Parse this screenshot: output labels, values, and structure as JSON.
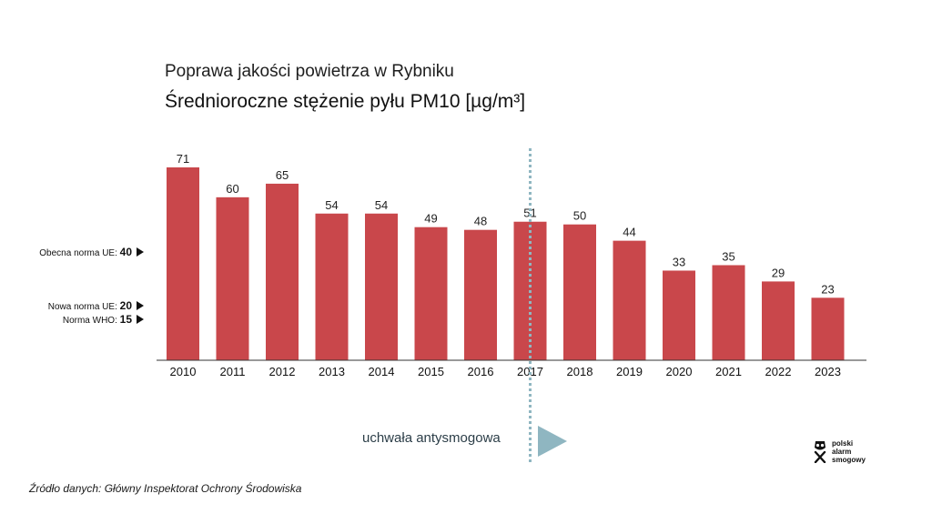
{
  "title": "Poprawa jakości powietrza w Rybniku",
  "subtitle": "Średnioroczne stężenie pyłu PM10 [µg/m³]",
  "colors": {
    "bar": "#c9474b",
    "baseline": "#333333",
    "divider": "#8fb6c1",
    "arrow": "#8fb6c1"
  },
  "reference_lines": [
    {
      "label": "Obecna norma UE:",
      "value_text": "40",
      "value": 40
    },
    {
      "label": "Nowa norma UE:",
      "value_text": "20",
      "value": 20
    },
    {
      "label": "Norma WHO:",
      "value_text": "15",
      "value": 15
    }
  ],
  "resolution": {
    "label": "uchwała antysmogowa",
    "year": "2017"
  },
  "source": "Źródło danych: Główny Inspektorat Ochrony Środowiska",
  "logo": {
    "icon": "gas-mask-icon",
    "lines": [
      "polski",
      "alarm",
      "smogowy"
    ]
  },
  "chart_data": {
    "type": "bar",
    "categories": [
      "2010",
      "2011",
      "2012",
      "2013",
      "2014",
      "2015",
      "2016",
      "2017",
      "2018",
      "2019",
      "2020",
      "2021",
      "2022",
      "2023"
    ],
    "values": [
      71,
      60,
      65,
      54,
      54,
      49,
      48,
      51,
      50,
      44,
      33,
      35,
      29,
      23
    ],
    "title": "Poprawa jakości powietrza w Rybniku",
    "subtitle": "Średnioroczne stężenie pyłu PM10 [µg/m³]",
    "xlabel": "",
    "ylabel": "",
    "ylim": [
      0,
      71
    ],
    "grid": false,
    "legend": "none"
  }
}
